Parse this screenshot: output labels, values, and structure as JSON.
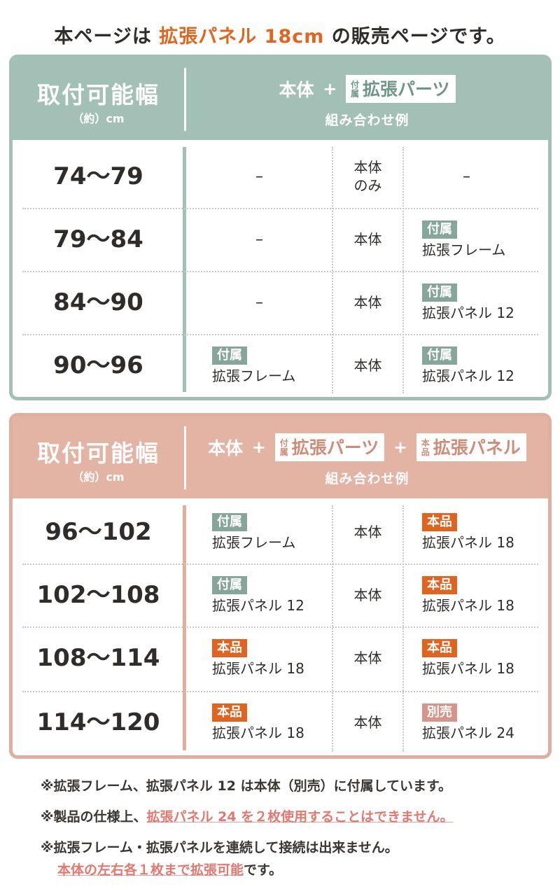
{
  "headline": {
    "before": "本ページは ",
    "accent": "拡張パネル 18cm",
    "after": " の販売ページです。"
  },
  "green_section": {
    "header": {
      "title": "取付可能幅",
      "unit": "（約）cm",
      "formula": {
        "base": "本体",
        "plus": "+",
        "chip_small_top": "付",
        "chip_small_bottom": "属",
        "chip_label": "拡張パーツ"
      },
      "example": "組み合わせ例"
    },
    "rows": [
      {
        "range": "74〜79",
        "col1_text": "–",
        "col2_line1": "本体",
        "col2_line2": "のみ",
        "col3_text": "–"
      },
      {
        "range": "79〜84",
        "col1_text": "–",
        "col2_line1": "本体",
        "col3_tag": "付属",
        "col3_item": "拡張フレーム"
      },
      {
        "range": "84〜90",
        "col1_text": "–",
        "col2_line1": "本体",
        "col3_tag": "付属",
        "col3_item": "拡張パネル 12"
      },
      {
        "range": "90〜96",
        "col1_tag": "付属",
        "col1_item": "拡張フレーム",
        "col2_line1": "本体",
        "col3_tag": "付属",
        "col3_item": "拡張パネル 12"
      }
    ]
  },
  "pink_section": {
    "header": {
      "title": "取付可能幅",
      "unit": "（約）cm",
      "formula": {
        "base": "本体",
        "plus1": "+",
        "chip1_small_top": "付",
        "chip1_small_bottom": "属",
        "chip1_label": "拡張パーツ",
        "plus2": "+",
        "chip2_small_top": "本",
        "chip2_small_bottom": "品",
        "chip2_label": "拡張パネル"
      },
      "example": "組み合わせ例"
    },
    "rows": [
      {
        "range": "96〜102",
        "col1_tag": "付属",
        "col1_item": "拡張フレーム",
        "col2_line1": "本体",
        "col3_tag": "本品",
        "col3_item": "拡張パネル 18"
      },
      {
        "range": "102〜108",
        "col1_tag": "付属",
        "col1_item": "拡張パネル 12",
        "col2_line1": "本体",
        "col3_tag": "本品",
        "col3_item": "拡張パネル 18"
      },
      {
        "range": "108〜114",
        "col1_tag": "本品",
        "col1_item": "拡張パネル 18",
        "col2_line1": "本体",
        "col3_tag": "本品",
        "col3_item": "拡張パネル 18"
      },
      {
        "range": "114〜120",
        "col1_tag": "本品",
        "col1_item": "拡張パネル 18",
        "col2_line1": "本体",
        "col3_tag": "別売",
        "col3_item": "拡張パネル 24"
      }
    ]
  },
  "notes": {
    "note1": "※拡張フレーム、拡張パネル 12 は本体（別売）に付属しています。",
    "note2_prefix": "※製品の仕様上、",
    "note2_highlight": "拡張パネル 24 を２枚使用することはできません。",
    "note3": "※拡張フレーム・拡張パネルを連続して接続は出来ません。",
    "note4_highlight": "本体の左右各１枚まで拡張可能",
    "note4_suffix": "です。"
  },
  "colors": {
    "accent": "#e0661f",
    "green": "#a3c0b6",
    "pink": "#dfae9e",
    "orange_tag": "#e2631d",
    "gray_tag": "#86a69b",
    "rose_tag": "#d6958a",
    "warning": "#e2786e"
  }
}
